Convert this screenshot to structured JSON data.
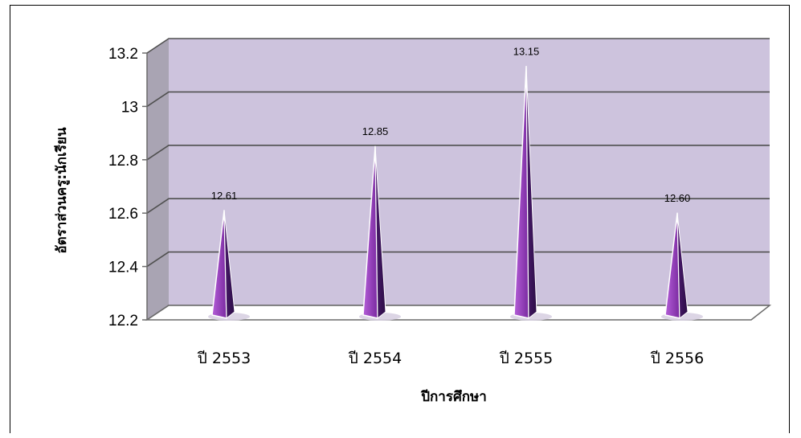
{
  "chart_data": {
    "type": "bar",
    "shape": "pyramid-3d",
    "title": "",
    "xlabel": "ปีการศึกษา",
    "ylabel": "อัตราส่วนครู:นักเรียน",
    "categories": [
      "ปี 2553",
      "ปี 2554",
      "ปี 2555",
      "ปี 2556"
    ],
    "series": [
      {
        "values": [
          12.61,
          12.85,
          13.15,
          12.6
        ]
      }
    ],
    "data_labels": [
      "12.61",
      "12.85",
      "13.15",
      "12.60"
    ],
    "ylim": [
      12.2,
      13.2
    ],
    "yticks": [
      12.2,
      12.4,
      12.6,
      12.8,
      13,
      13.2
    ],
    "ytick_labels": [
      "12.2",
      "12.4",
      "12.6",
      "12.8",
      "13",
      "13.2"
    ],
    "grid": true,
    "legend": "none",
    "colors": {
      "wall": "#cdc3dd",
      "side_wall": "#a9a4b3",
      "floor": "#ffffff",
      "grid": "#505050",
      "bar_light": "#a24cc8",
      "bar_dark": "#3d1760"
    }
  }
}
